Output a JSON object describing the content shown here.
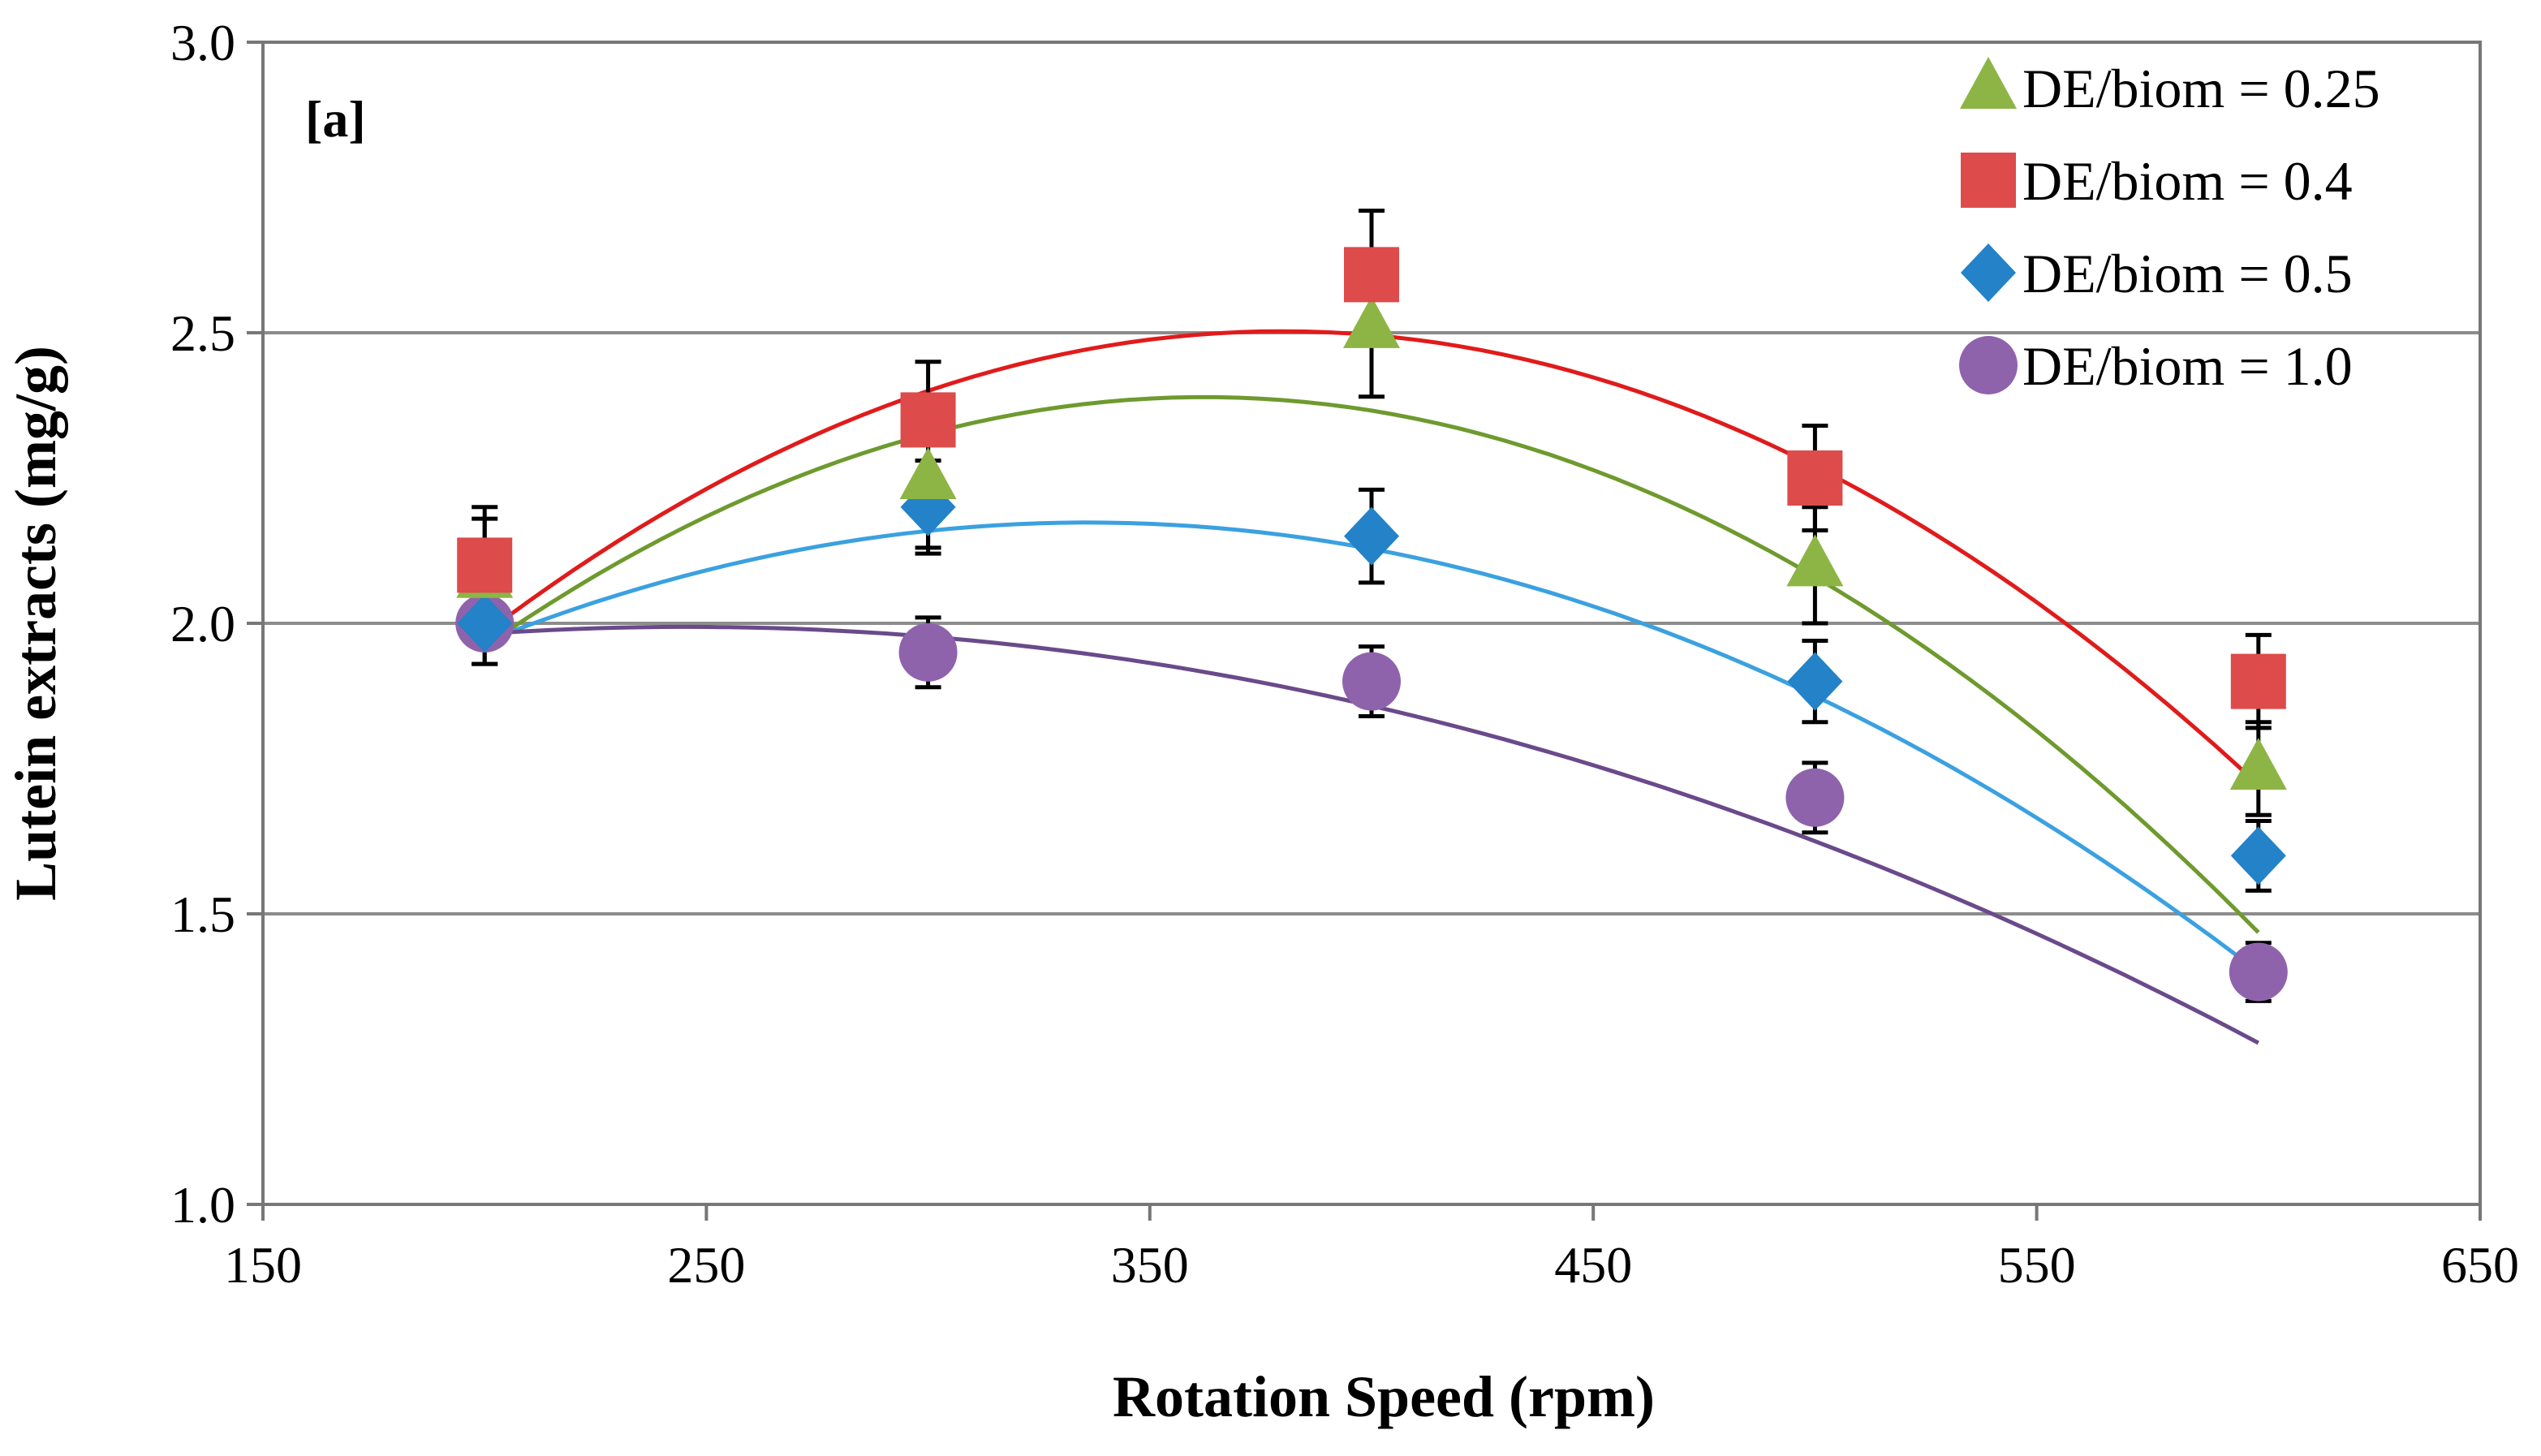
{
  "chart_data": {
    "type": "scatter",
    "panel_label": "[a]",
    "xlabel": "Rotation Speed (rpm)",
    "ylabel": "Lutein extracts (mg/g)",
    "xlim": [
      150,
      650
    ],
    "ylim": [
      1.0,
      3.0
    ],
    "xticks": [
      150,
      250,
      350,
      450,
      550,
      650
    ],
    "yticks": [
      1.0,
      1.5,
      2.0,
      2.5,
      3.0
    ],
    "xtick_labels": [
      "150",
      "250",
      "350",
      "450",
      "550",
      "650"
    ],
    "ytick_labels": [
      "1.0",
      "1.5",
      "2.0",
      "2.5",
      "3.0"
    ],
    "grid": "horizontal at 1.5, 2.0, 2.5",
    "legend_position": "top-right",
    "x": [
      200,
      300,
      400,
      500,
      600
    ],
    "series": [
      {
        "name": "DE/biom = 0.25",
        "marker": "triangle",
        "marker_color": "#8DB545",
        "line_color": "#6E9A2E",
        "values": [
          2.08,
          2.25,
          2.51,
          2.1,
          1.75
        ],
        "error": [
          0.1,
          0.12,
          0.12,
          0.1,
          0.08
        ],
        "fit": [
          -1.63e-05,
          0.01181,
          0.25
        ]
      },
      {
        "name": "DE/biom = 0.4",
        "marker": "square",
        "marker_color": "#DD4B4B",
        "line_color": "#E01B1B",
        "values": [
          2.1,
          2.35,
          2.6,
          2.25,
          1.9
        ],
        "error": [
          0.1,
          0.1,
          0.11,
          0.09,
          0.08
        ],
        "fit": [
          -1.61e-05,
          0.01223,
          0.18
        ]
      },
      {
        "name": "DE/biom = 0.5",
        "marker": "diamond",
        "marker_color": "#2382C8",
        "line_color": "#3BA1E0",
        "values": [
          2.0,
          2.2,
          2.15,
          1.9,
          1.6
        ],
        "error": [
          0.07,
          0.08,
          0.08,
          0.07,
          0.06
        ],
        "fit": [
          -1.11e-05,
          0.00746,
          0.92
        ]
      },
      {
        "name": "DE/biom = 1.0",
        "marker": "circle",
        "marker_color": "#8E63AC",
        "line_color": "#6A4A8A",
        "values": [
          2.0,
          1.95,
          1.9,
          1.7,
          1.4
        ],
        "error": [
          0.07,
          0.06,
          0.06,
          0.06,
          0.05
        ],
        "fit": [
          -5.7e-06,
          0.0028,
          1.65
        ]
      }
    ]
  }
}
